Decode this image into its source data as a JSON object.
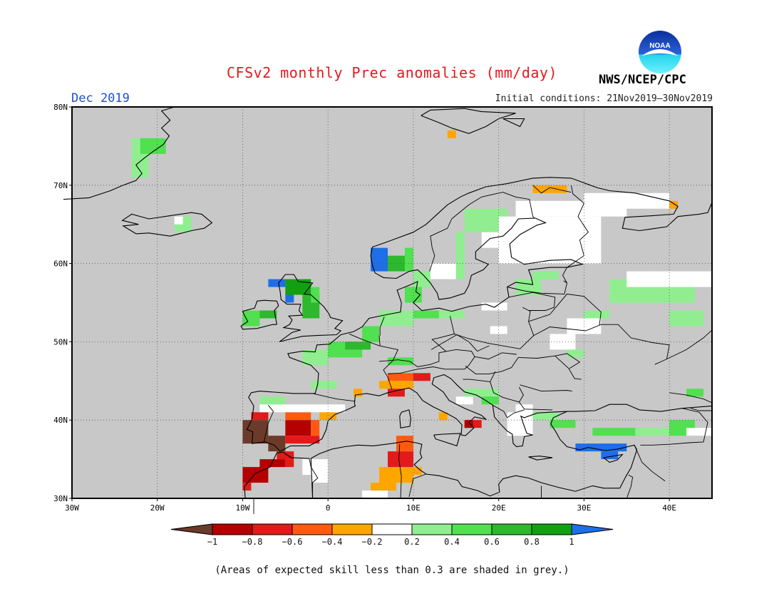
{
  "title": "CFSv2 monthly Prec anomalies (mm/day)",
  "month": "Dec 2019",
  "initial_conditions": "Initial conditions: 21Nov2019–30Nov2019",
  "agency": "NWS/NCEP/CPC",
  "logo_text": "NOAA",
  "footnote": "(Areas of expected skill less than 0.3 are shaded in grey.)",
  "map": {
    "lon_range": [
      -30,
      45
    ],
    "lat_range": [
      30,
      80
    ],
    "lon_ticks": [
      {
        "value": -30,
        "label": "30W"
      },
      {
        "value": -20,
        "label": "20W"
      },
      {
        "value": -10,
        "label": "10W"
      },
      {
        "value": 0,
        "label": "0"
      },
      {
        "value": 10,
        "label": "10E"
      },
      {
        "value": 20,
        "label": "20E"
      },
      {
        "value": 30,
        "label": "30E"
      },
      {
        "value": 40,
        "label": "40E"
      }
    ],
    "lat_ticks": [
      {
        "value": 30,
        "label": "30N"
      },
      {
        "value": 40,
        "label": "40N"
      },
      {
        "value": 50,
        "label": "50N"
      },
      {
        "value": 60,
        "label": "60N"
      },
      {
        "value": 70,
        "label": "70N"
      },
      {
        "value": 80,
        "label": "80N"
      }
    ],
    "grid": true,
    "background_color": "#c8c8c8"
  },
  "colorbar": {
    "boundaries": [
      "-1",
      "-0.8",
      "-0.6",
      "-0.4",
      "-0.2",
      "0.2",
      "0.4",
      "0.6",
      "0.8",
      "1"
    ],
    "colors": [
      "#6b3a2a",
      "#b40000",
      "#e21a1a",
      "#ff5a10",
      "#ffa500",
      "#ffffff",
      "#90ee90",
      "#50e050",
      "#2db82d",
      "#12a012",
      "#1e6ee6"
    ]
  },
  "anomaly_cells": [
    {
      "lon": -10,
      "lat": 37,
      "w": 3,
      "h": 3,
      "class": 0
    },
    {
      "lon": -7,
      "lat": 36,
      "w": 2,
      "h": 2,
      "class": 0
    },
    {
      "lon": -10,
      "lat": 32,
      "w": 3,
      "h": 2,
      "class": 1
    },
    {
      "lon": -8,
      "lat": 34,
      "w": 3,
      "h": 1,
      "class": 1
    },
    {
      "lon": -10,
      "lat": 31,
      "w": 1,
      "h": 1,
      "class": 2
    },
    {
      "lon": -5,
      "lat": 38,
      "w": 3,
      "h": 2,
      "class": 1
    },
    {
      "lon": -9,
      "lat": 40,
      "w": 2,
      "h": 1,
      "class": 2
    },
    {
      "lon": -5,
      "lat": 37,
      "w": 4,
      "h": 1,
      "class": 2
    },
    {
      "lon": -5,
      "lat": 40,
      "w": 3,
      "h": 1,
      "class": 3
    },
    {
      "lon": -2,
      "lat": 38,
      "w": 1,
      "h": 2,
      "class": 3
    },
    {
      "lon": -1,
      "lat": 40,
      "w": 2,
      "h": 1,
      "class": 4
    },
    {
      "lon": -8,
      "lat": 41,
      "w": 10,
      "h": 1,
      "class": 5
    },
    {
      "lon": -6,
      "lat": 35,
      "w": 2,
      "h": 1,
      "class": 2
    },
    {
      "lon": -5,
      "lat": 34,
      "w": 1,
      "h": 1,
      "class": 2
    },
    {
      "lon": -3,
      "lat": 33,
      "w": 3,
      "h": 2,
      "class": 5
    },
    {
      "lon": -2,
      "lat": 32,
      "w": 2,
      "h": 1,
      "class": 5
    },
    {
      "lon": 7,
      "lat": 34,
      "w": 3,
      "h": 2,
      "class": 2
    },
    {
      "lon": 8,
      "lat": 36,
      "w": 2,
      "h": 2,
      "class": 3
    },
    {
      "lon": 6,
      "lat": 32,
      "w": 4,
      "h": 2,
      "class": 4
    },
    {
      "lon": 5,
      "lat": 31,
      "w": 3,
      "h": 1,
      "class": 4
    },
    {
      "lon": 9,
      "lat": 33,
      "w": 2,
      "h": 1,
      "class": 4
    },
    {
      "lon": 4,
      "lat": 30,
      "w": 3,
      "h": 1,
      "class": 5
    },
    {
      "lon": 7,
      "lat": 45,
      "w": 3,
      "h": 1,
      "class": 3
    },
    {
      "lon": 6,
      "lat": 44,
      "w": 4,
      "h": 1,
      "class": 4
    },
    {
      "lon": 10,
      "lat": 45,
      "w": 2,
      "h": 1,
      "class": 2
    },
    {
      "lon": 7,
      "lat": 43,
      "w": 2,
      "h": 1,
      "class": 2
    },
    {
      "lon": 3,
      "lat": 43,
      "w": 1,
      "h": 1,
      "class": 4
    },
    {
      "lon": 13,
      "lat": 40,
      "w": 1,
      "h": 1,
      "class": 4
    },
    {
      "lon": 16,
      "lat": 39,
      "w": 2,
      "h": 1,
      "class": 2
    },
    {
      "lon": 16,
      "lat": 39,
      "w": 1,
      "h": 1,
      "class": 1
    },
    {
      "lon": 15,
      "lat": 42,
      "w": 2,
      "h": 1,
      "class": 5
    },
    {
      "lon": 24,
      "lat": 69,
      "w": 4,
      "h": 1,
      "class": 4
    },
    {
      "lon": 40,
      "lat": 67,
      "w": 1,
      "h": 1,
      "class": 4
    },
    {
      "lon": 14,
      "lat": 76,
      "w": 1,
      "h": 1,
      "class": 4
    },
    {
      "lon": -8,
      "lat": 42,
      "w": 3,
      "h": 1,
      "class": 6
    },
    {
      "lon": -2,
      "lat": 44,
      "w": 3,
      "h": 1,
      "class": 6
    },
    {
      "lon": -3,
      "lat": 47,
      "w": 3,
      "h": 2,
      "class": 6
    },
    {
      "lon": 0,
      "lat": 48,
      "w": 4,
      "h": 2,
      "class": 7
    },
    {
      "lon": 2,
      "lat": 49,
      "w": 3,
      "h": 1,
      "class": 8
    },
    {
      "lon": 4,
      "lat": 50,
      "w": 2,
      "h": 2,
      "class": 7
    },
    {
      "lon": 6,
      "lat": 52,
      "w": 4,
      "h": 2,
      "class": 6
    },
    {
      "lon": 7,
      "lat": 47,
      "w": 3,
      "h": 1,
      "class": 7
    },
    {
      "lon": 10,
      "lat": 53,
      "w": 3,
      "h": 1,
      "class": 7
    },
    {
      "lon": 13,
      "lat": 53,
      "w": 3,
      "h": 1,
      "class": 6
    },
    {
      "lon": -10,
      "lat": 52,
      "w": 2,
      "h": 2,
      "class": 7
    },
    {
      "lon": -8,
      "lat": 53,
      "w": 2,
      "h": 1,
      "class": 8
    },
    {
      "lon": -5,
      "lat": 56,
      "w": 3,
      "h": 2,
      "class": 9
    },
    {
      "lon": -3,
      "lat": 53,
      "w": 2,
      "h": 3,
      "class": 8
    },
    {
      "lon": -2,
      "lat": 55,
      "w": 1,
      "h": 2,
      "class": 7
    },
    {
      "lon": -7,
      "lat": 57,
      "w": 2,
      "h": 1,
      "class": 10
    },
    {
      "lon": -5,
      "lat": 55,
      "w": 1,
      "h": 1,
      "class": 10
    },
    {
      "lon": 5,
      "lat": 59,
      "w": 2,
      "h": 3,
      "class": 10
    },
    {
      "lon": 7,
      "lat": 59,
      "w": 2,
      "h": 2,
      "class": 8
    },
    {
      "lon": 9,
      "lat": 59,
      "w": 1,
      "h": 3,
      "class": 7
    },
    {
      "lon": 10,
      "lat": 57,
      "w": 2,
      "h": 2,
      "class": 6
    },
    {
      "lon": 9,
      "lat": 55,
      "w": 2,
      "h": 2,
      "class": 7
    },
    {
      "lon": 12,
      "lat": 58,
      "w": 3,
      "h": 2,
      "class": 5
    },
    {
      "lon": 15,
      "lat": 58,
      "w": 1,
      "h": 6,
      "class": 6
    },
    {
      "lon": 16,
      "lat": 64,
      "w": 5,
      "h": 3,
      "class": 6
    },
    {
      "lon": 18,
      "lat": 62,
      "w": 3,
      "h": 2,
      "class": 5
    },
    {
      "lon": 20,
      "lat": 60,
      "w": 12,
      "h": 6,
      "class": 5
    },
    {
      "lon": 22,
      "lat": 66,
      "w": 13,
      "h": 2,
      "class": 5
    },
    {
      "lon": 30,
      "lat": 67,
      "w": 10,
      "h": 2,
      "class": 5
    },
    {
      "lon": 22,
      "lat": 56,
      "w": 3,
      "h": 2,
      "class": 6
    },
    {
      "lon": 24,
      "lat": 58,
      "w": 3,
      "h": 1,
      "class": 6
    },
    {
      "lon": 18,
      "lat": 54,
      "w": 3,
      "h": 1,
      "class": 5
    },
    {
      "lon": 30,
      "lat": 53,
      "w": 3,
      "h": 1,
      "class": 6
    },
    {
      "lon": 33,
      "lat": 55,
      "w": 10,
      "h": 3,
      "class": 6
    },
    {
      "lon": 35,
      "lat": 57,
      "w": 10,
      "h": 2,
      "class": 5
    },
    {
      "lon": 40,
      "lat": 52,
      "w": 4,
      "h": 2,
      "class": 6
    },
    {
      "lon": 28,
      "lat": 51,
      "w": 4,
      "h": 2,
      "class": 5
    },
    {
      "lon": 26,
      "lat": 49,
      "w": 3,
      "h": 2,
      "class": 5
    },
    {
      "lon": 28,
      "lat": 48,
      "w": 2,
      "h": 1,
      "class": 6
    },
    {
      "lon": 19,
      "lat": 51,
      "w": 2,
      "h": 1,
      "class": 5
    },
    {
      "lon": 16,
      "lat": 43,
      "w": 4,
      "h": 1,
      "class": 6
    },
    {
      "lon": 18,
      "lat": 42,
      "w": 2,
      "h": 1,
      "class": 7
    },
    {
      "lon": 24,
      "lat": 40,
      "w": 3,
      "h": 1,
      "class": 6
    },
    {
      "lon": 26,
      "lat": 39,
      "w": 3,
      "h": 1,
      "class": 7
    },
    {
      "lon": 31,
      "lat": 38,
      "w": 6,
      "h": 1,
      "class": 7
    },
    {
      "lon": 36,
      "lat": 38,
      "w": 4,
      "h": 1,
      "class": 6
    },
    {
      "lon": 29,
      "lat": 36,
      "w": 6,
      "h": 1,
      "class": 10
    },
    {
      "lon": 32,
      "lat": 35,
      "w": 2,
      "h": 1,
      "class": 10
    },
    {
      "lon": 40,
      "lat": 38,
      "w": 3,
      "h": 2,
      "class": 7
    },
    {
      "lon": 42,
      "lat": 38,
      "w": 3,
      "h": 1,
      "class": 5
    },
    {
      "lon": 42,
      "lat": 43,
      "w": 2,
      "h": 1,
      "class": 7
    },
    {
      "lon": 21,
      "lat": 38,
      "w": 3,
      "h": 3,
      "class": 5
    },
    {
      "lon": 22,
      "lat": 41,
      "w": 2,
      "h": 1,
      "class": 5
    },
    {
      "lon": -23,
      "lat": 71,
      "w": 2,
      "h": 5,
      "class": 6
    },
    {
      "lon": -22,
      "lat": 74,
      "w": 3,
      "h": 2,
      "class": 7
    },
    {
      "lon": -18,
      "lat": 64,
      "w": 2,
      "h": 2,
      "class": 6
    },
    {
      "lon": -18,
      "lat": 65,
      "w": 1,
      "h": 1,
      "class": 5
    }
  ]
}
